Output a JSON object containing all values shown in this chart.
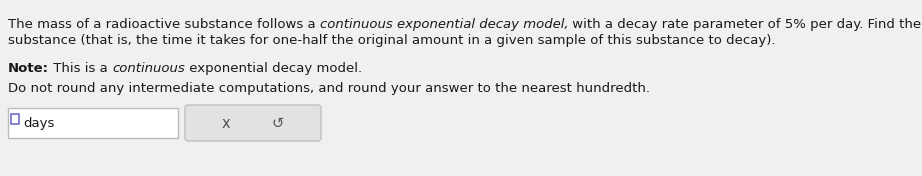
{
  "background_color": "#f0f0f0",
  "text_color": "#1a1a1a",
  "font_size": 9.5,
  "line1_parts": [
    [
      "The mass of a radioactive substance follows a ",
      "normal"
    ],
    [
      "continuous exponential decay model,",
      "italic"
    ],
    [
      " with a decay rate parameter of 5% per day. Find the half-life of this",
      "normal"
    ]
  ],
  "line2": "substance (that is, the time it takes for one-half the original amount in a given sample of this substance to decay).",
  "note_parts": [
    [
      "Note:",
      "bold"
    ],
    [
      " This is a ",
      "normal"
    ],
    [
      "continuous",
      "italic"
    ],
    [
      " exponential decay model.",
      "normal"
    ]
  ],
  "instruction": "Do not round any intermediate computations, and round your answer to the nearest hundredth.",
  "input_label": "days",
  "btn_x": "x",
  "btn_redo": "↺",
  "input_box_facecolor": "#ffffff",
  "input_box_edgecolor": "#bbbbbb",
  "btn_box_facecolor": "#e2e2e2",
  "btn_box_edgecolor": "#c0c0c0",
  "cursor_color": "#7070cc",
  "icon_color": "#555555"
}
